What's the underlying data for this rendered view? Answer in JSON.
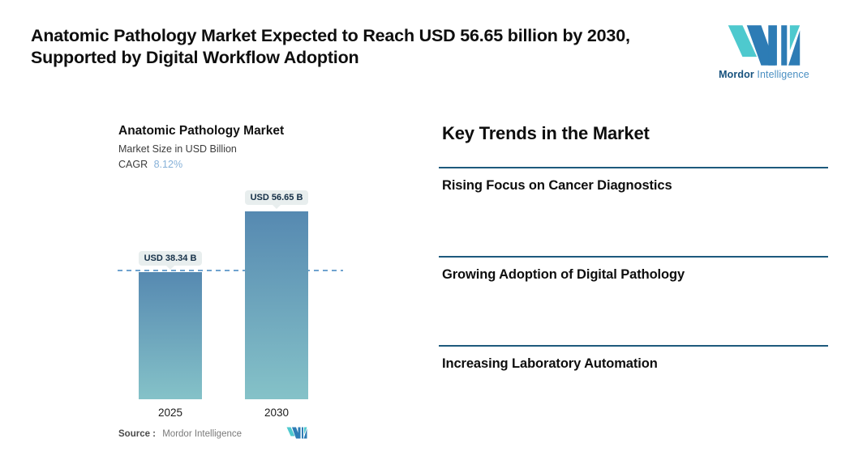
{
  "header": {
    "title": "Anatomic Pathology Market Expected to Reach USD 56.65 billion by 2030, Supported by Digital Workflow Adoption",
    "brand": {
      "name_bold": "Mordor",
      "name_light": "Intelligence"
    }
  },
  "chart": {
    "title": "Anatomic Pathology Market",
    "subtitle": "Market Size in USD Billion",
    "cagr_label": "CAGR",
    "cagr_value": "8.12%",
    "bars": [
      {
        "year": "2025",
        "label": "USD 38.34 B"
      },
      {
        "year": "2030",
        "label": "USD 56.65 B"
      }
    ],
    "source_label": "Source :",
    "source_value": "Mordor Intelligence"
  },
  "trends": {
    "heading": "Key Trends in the Market",
    "items": [
      {
        "label": "Rising Focus on Cancer Diagnostics"
      },
      {
        "label": "Growing Adoption of Digital Pathology"
      },
      {
        "label": "Increasing Laboratory Automation"
      }
    ]
  },
  "colors": {
    "bar_gradient_top": "#5689b1",
    "bar_gradient_bottom": "#85c2c8",
    "dashed_reference_line": "#6fa3cf",
    "badge_background": "#e8eeee",
    "badge_text": "#142f47",
    "trend_rule": "#1d5a7d",
    "cagr_value": "#86b1d8",
    "brand_teal": "#4ec9ce",
    "brand_blue": "#2d7cb5",
    "brand_dark": "#17527e",
    "brand_light": "#4a8fc2"
  },
  "chart_data": {
    "type": "bar",
    "title": "Anatomic Pathology Market",
    "ylabel": "Market Size in USD Billion",
    "categories": [
      "2025",
      "2030"
    ],
    "values": [
      38.34,
      56.65
    ],
    "data_labels": [
      "USD 38.34 B",
      "USD 56.65 B"
    ],
    "cagr_percent": 8.12,
    "reference_line": {
      "value": 38.34,
      "style": "dashed"
    },
    "ylim": [
      0,
      60
    ],
    "grid": false,
    "legend": false,
    "source": "Mordor Intelligence"
  }
}
